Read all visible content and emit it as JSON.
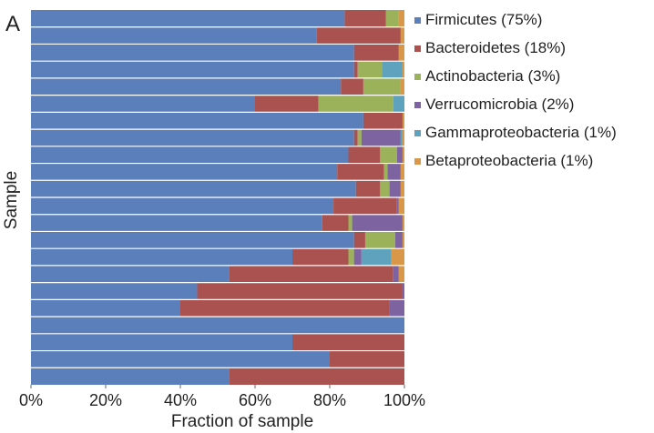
{
  "panel_label": "A",
  "chart_data": {
    "type": "bar",
    "orientation": "horizontal",
    "stacked": true,
    "xlabel": "Fraction of sample",
    "ylabel": "Sample",
    "xlim": [
      0,
      1
    ],
    "xticks": [
      0,
      0.2,
      0.4,
      0.6,
      0.8,
      1.0
    ],
    "xtick_labels": [
      "0%",
      "20%",
      "40%",
      "60%",
      "80%",
      "100%"
    ],
    "legend_position": "right",
    "series": [
      {
        "name": "Firmicutes (75%)",
        "color": "#5b7fba",
        "values": [
          0.84,
          0.765,
          0.865,
          0.865,
          0.83,
          0.6,
          0.89,
          0.865,
          0.85,
          0.82,
          0.87,
          0.81,
          0.78,
          0.865,
          0.7,
          0.53,
          0.445,
          0.4,
          1.0,
          0.7,
          0.8,
          0.53
        ]
      },
      {
        "name": "Bacteroidetes (18%)",
        "color": "#a9524f",
        "values": [
          0.11,
          0.225,
          0.12,
          0.01,
          0.06,
          0.17,
          0.105,
          0.01,
          0.085,
          0.125,
          0.065,
          0.17,
          0.07,
          0.03,
          0.15,
          0.44,
          0.55,
          0.56,
          0.0,
          0.3,
          0.2,
          0.47
        ]
      },
      {
        "name": "Actinobacteria (3%)",
        "color": "#9bb15a",
        "values": [
          0.035,
          0.0,
          0.0,
          0.065,
          0.1,
          0.2,
          0.0,
          0.01,
          0.045,
          0.01,
          0.025,
          0.0,
          0.01,
          0.08,
          0.015,
          0.0,
          0.0,
          0.0,
          0.0,
          0.0,
          0.0,
          0.0
        ]
      },
      {
        "name": "Verrucomicrobia (2%)",
        "color": "#7d63a0",
        "values": [
          0.0,
          0.0,
          0.0,
          0.0,
          0.0,
          0.0,
          0.0,
          0.105,
          0.015,
          0.035,
          0.03,
          0.005,
          0.135,
          0.02,
          0.02,
          0.015,
          0.005,
          0.04,
          0.0,
          0.0,
          0.0,
          0.0
        ]
      },
      {
        "name": "Gammaproteobacteria (1%)",
        "color": "#5fa2bd",
        "values": [
          0.0,
          0.0,
          0.0,
          0.055,
          0.0,
          0.035,
          0.0,
          0.005,
          0.0,
          0.0,
          0.0,
          0.0,
          0.0,
          0.0,
          0.08,
          0.0,
          0.0,
          0.0,
          0.0,
          0.0,
          0.0,
          0.0
        ]
      },
      {
        "name": "Betaproteobacteria (1%)",
        "color": "#d99749",
        "values": [
          0.015,
          0.01,
          0.015,
          0.005,
          0.01,
          0.0,
          0.005,
          0.005,
          0.005,
          0.01,
          0.01,
          0.015,
          0.005,
          0.005,
          0.035,
          0.015,
          0.0,
          0.0,
          0.0,
          0.0,
          0.0,
          0.0
        ]
      }
    ]
  }
}
